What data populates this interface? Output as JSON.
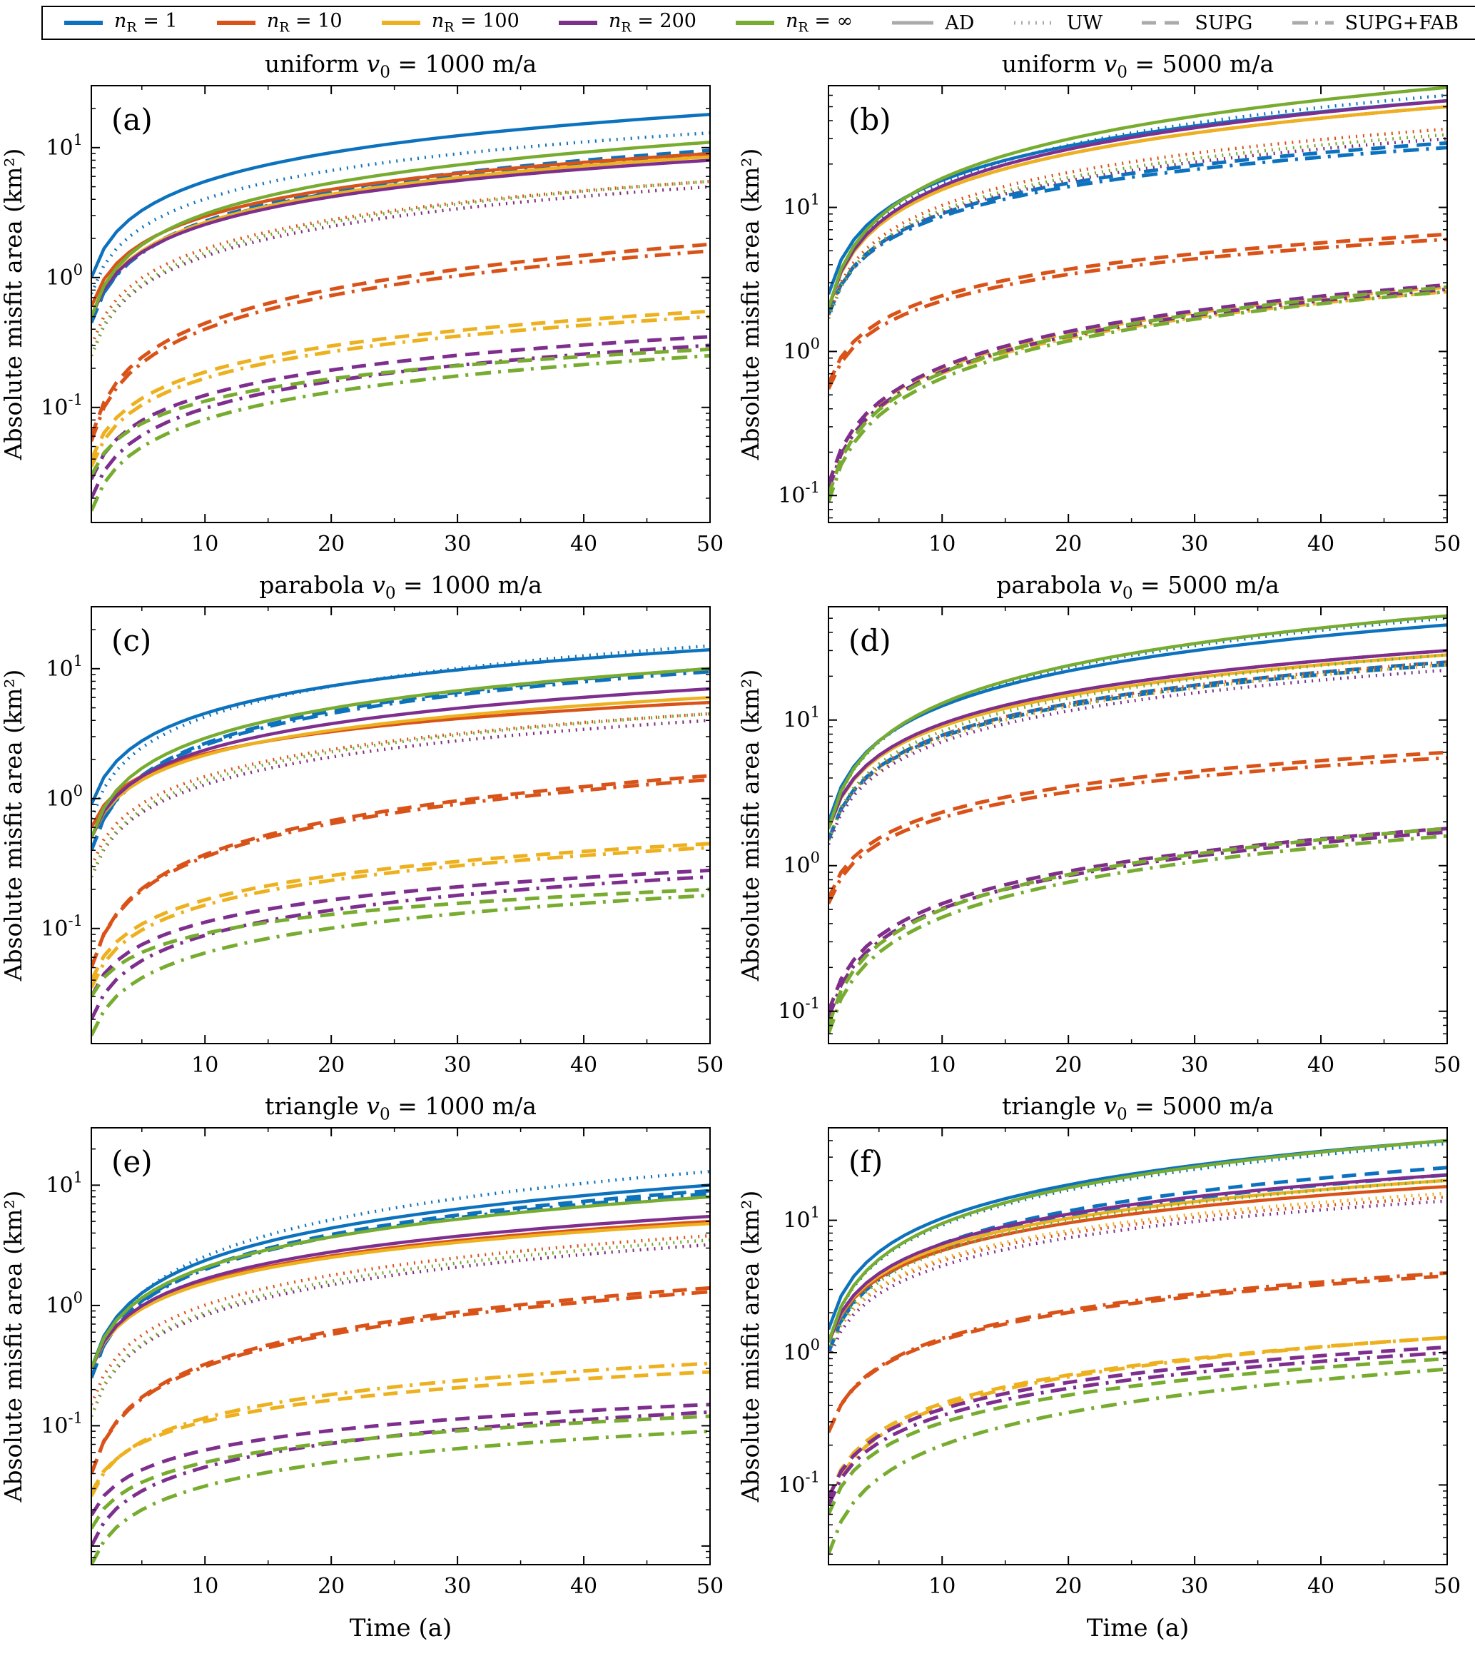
{
  "figure": {
    "ylabel": "Absolute misfit area (km²)",
    "xlabel": "Time (a)"
  },
  "legend": {
    "colors": [
      {
        "label": "n_R = 1",
        "color": "#0d72bd"
      },
      {
        "label": "n_R = 10",
        "color": "#d95319"
      },
      {
        "label": "n_R = 100",
        "color": "#edb120"
      },
      {
        "label": "n_R = 200",
        "color": "#7e2f8e"
      },
      {
        "label": "n_R = ∞",
        "color": "#77ac30"
      }
    ],
    "styles": [
      {
        "label": "AD",
        "dash": "solid",
        "color": "#aaaaaa"
      },
      {
        "label": "UW",
        "dash": "dotted",
        "color": "#aaaaaa"
      },
      {
        "label": "SUPG",
        "dash": "dashed",
        "color": "#aaaaaa"
      },
      {
        "label": "SUPG+FAB",
        "dash": "dashdot",
        "color": "#aaaaaa"
      }
    ]
  },
  "chart_data": [
    {
      "type": "line",
      "panel": "(a)",
      "title": "uniform v_0 = 1000 m/a",
      "xlim": [
        1,
        50
      ],
      "ylim": [
        0.013,
        30
      ],
      "xticks": [
        10,
        20,
        30,
        40,
        50
      ],
      "ytick_exponents": [
        -1,
        0,
        1
      ],
      "xlabel": "",
      "ylabel": "Absolute misfit area (km²)",
      "series": [
        {
          "c": 0,
          "s": 0,
          "y1": 1.0,
          "y50": 18
        },
        {
          "c": 0,
          "s": 1,
          "y1": 0.75,
          "y50": 13
        },
        {
          "c": 0,
          "s": 2,
          "y1": 0.45,
          "y50": 9.5
        },
        {
          "c": 0,
          "s": 3,
          "y1": 0.45,
          "y50": 9.0
        },
        {
          "c": 1,
          "s": 0,
          "y1": 0.6,
          "y50": 9
        },
        {
          "c": 1,
          "s": 1,
          "y1": 0.3,
          "y50": 5.5
        },
        {
          "c": 1,
          "s": 2,
          "y1": 0.06,
          "y50": 1.8
        },
        {
          "c": 1,
          "s": 3,
          "y1": 0.055,
          "y50": 1.6
        },
        {
          "c": 2,
          "s": 0,
          "y1": 0.5,
          "y50": 8.5
        },
        {
          "c": 2,
          "s": 1,
          "y1": 0.25,
          "y50": 5
        },
        {
          "c": 2,
          "s": 2,
          "y1": 0.04,
          "y50": 0.55
        },
        {
          "c": 2,
          "s": 3,
          "y1": 0.035,
          "y50": 0.5
        },
        {
          "c": 3,
          "s": 0,
          "y1": 0.5,
          "y50": 8
        },
        {
          "c": 3,
          "s": 1,
          "y1": 0.25,
          "y50": 5
        },
        {
          "c": 3,
          "s": 2,
          "y1": 0.028,
          "y50": 0.35
        },
        {
          "c": 3,
          "s": 3,
          "y1": 0.02,
          "y50": 0.3
        },
        {
          "c": 4,
          "s": 0,
          "y1": 0.5,
          "y50": 11
        },
        {
          "c": 4,
          "s": 1,
          "y1": 0.25,
          "y50": 5.5
        },
        {
          "c": 4,
          "s": 2,
          "y1": 0.03,
          "y50": 0.28
        },
        {
          "c": 4,
          "s": 3,
          "y1": 0.016,
          "y50": 0.25
        }
      ]
    },
    {
      "type": "line",
      "panel": "(b)",
      "title": "uniform v_0 = 5000 m/a",
      "xlim": [
        1,
        50
      ],
      "ylim": [
        0.065,
        70
      ],
      "xticks": [
        10,
        20,
        30,
        40,
        50
      ],
      "ytick_exponents": [
        -1,
        0,
        1
      ],
      "xlabel": "",
      "ylabel": "Absolute misfit area (km²)",
      "series": [
        {
          "c": 0,
          "s": 0,
          "y1": 2.5,
          "y50": 55
        },
        {
          "c": 0,
          "s": 1,
          "y1": 2.0,
          "y50": 60
        },
        {
          "c": 0,
          "s": 2,
          "y1": 1.8,
          "y50": 28
        },
        {
          "c": 0,
          "s": 3,
          "y1": 1.8,
          "y50": 26
        },
        {
          "c": 1,
          "s": 0,
          "y1": 2.0,
          "y50": 50
        },
        {
          "c": 1,
          "s": 1,
          "y1": 1.8,
          "y50": 35
        },
        {
          "c": 1,
          "s": 2,
          "y1": 0.6,
          "y50": 6.5
        },
        {
          "c": 1,
          "s": 3,
          "y1": 0.55,
          "y50": 6.0
        },
        {
          "c": 2,
          "s": 0,
          "y1": 2.0,
          "y50": 50
        },
        {
          "c": 2,
          "s": 1,
          "y1": 1.7,
          "y50": 30
        },
        {
          "c": 2,
          "s": 2,
          "y1": 0.12,
          "y50": 2.8
        },
        {
          "c": 2,
          "s": 3,
          "y1": 0.11,
          "y50": 2.6
        },
        {
          "c": 3,
          "s": 0,
          "y1": 2.0,
          "y50": 55
        },
        {
          "c": 3,
          "s": 1,
          "y1": 1.7,
          "y50": 30
        },
        {
          "c": 3,
          "s": 2,
          "y1": 0.12,
          "y50": 2.9
        },
        {
          "c": 3,
          "s": 3,
          "y1": 0.11,
          "y50": 2.7
        },
        {
          "c": 4,
          "s": 0,
          "y1": 2.0,
          "y50": 68
        },
        {
          "c": 4,
          "s": 1,
          "y1": 1.7,
          "y50": 32
        },
        {
          "c": 4,
          "s": 2,
          "y1": 0.1,
          "y50": 2.8
        },
        {
          "c": 4,
          "s": 3,
          "y1": 0.09,
          "y50": 2.6
        }
      ]
    },
    {
      "type": "line",
      "panel": "(c)",
      "title": "parabola v_0 = 1000 m/a",
      "xlim": [
        1,
        50
      ],
      "ylim": [
        0.013,
        30
      ],
      "xticks": [
        10,
        20,
        30,
        40,
        50
      ],
      "ytick_exponents": [
        -1,
        0,
        1
      ],
      "xlabel": "",
      "ylabel": "Absolute misfit area (km²)",
      "series": [
        {
          "c": 0,
          "s": 0,
          "y1": 0.9,
          "y50": 14
        },
        {
          "c": 0,
          "s": 1,
          "y1": 0.7,
          "y50": 15
        },
        {
          "c": 0,
          "s": 2,
          "y1": 0.4,
          "y50": 10
        },
        {
          "c": 0,
          "s": 3,
          "y1": 0.4,
          "y50": 9.5
        },
        {
          "c": 1,
          "s": 0,
          "y1": 0.6,
          "y50": 5.5
        },
        {
          "c": 1,
          "s": 1,
          "y1": 0.3,
          "y50": 4.5
        },
        {
          "c": 1,
          "s": 2,
          "y1": 0.05,
          "y50": 1.5
        },
        {
          "c": 1,
          "s": 3,
          "y1": 0.05,
          "y50": 1.4
        },
        {
          "c": 2,
          "s": 0,
          "y1": 0.5,
          "y50": 6
        },
        {
          "c": 2,
          "s": 1,
          "y1": 0.25,
          "y50": 4
        },
        {
          "c": 2,
          "s": 2,
          "y1": 0.04,
          "y50": 0.45
        },
        {
          "c": 2,
          "s": 3,
          "y1": 0.035,
          "y50": 0.42
        },
        {
          "c": 3,
          "s": 0,
          "y1": 0.5,
          "y50": 7
        },
        {
          "c": 3,
          "s": 1,
          "y1": 0.25,
          "y50": 4
        },
        {
          "c": 3,
          "s": 2,
          "y1": 0.03,
          "y50": 0.28
        },
        {
          "c": 3,
          "s": 3,
          "y1": 0.02,
          "y50": 0.25
        },
        {
          "c": 4,
          "s": 0,
          "y1": 0.5,
          "y50": 10
        },
        {
          "c": 4,
          "s": 1,
          "y1": 0.25,
          "y50": 4.5
        },
        {
          "c": 4,
          "s": 2,
          "y1": 0.03,
          "y50": 0.2
        },
        {
          "c": 4,
          "s": 3,
          "y1": 0.015,
          "y50": 0.18
        }
      ]
    },
    {
      "type": "line",
      "panel": "(d)",
      "title": "parabola v_0 = 5000 m/a",
      "xlim": [
        1,
        50
      ],
      "ylim": [
        0.06,
        60
      ],
      "xticks": [
        10,
        20,
        30,
        40,
        50
      ],
      "ytick_exponents": [
        -1,
        0,
        1
      ],
      "xlabel": "",
      "ylabel": "Absolute misfit area (km²)",
      "series": [
        {
          "c": 0,
          "s": 0,
          "y1": 2.0,
          "y50": 45
        },
        {
          "c": 0,
          "s": 1,
          "y1": 1.8,
          "y50": 50
        },
        {
          "c": 0,
          "s": 2,
          "y1": 1.5,
          "y50": 25
        },
        {
          "c": 0,
          "s": 3,
          "y1": 1.5,
          "y50": 24
        },
        {
          "c": 1,
          "s": 0,
          "y1": 1.8,
          "y50": 30
        },
        {
          "c": 1,
          "s": 1,
          "y1": 1.5,
          "y50": 25
        },
        {
          "c": 1,
          "s": 2,
          "y1": 0.6,
          "y50": 6.0
        },
        {
          "c": 1,
          "s": 3,
          "y1": 0.55,
          "y50": 5.5
        },
        {
          "c": 2,
          "s": 0,
          "y1": 1.8,
          "y50": 28
        },
        {
          "c": 2,
          "s": 1,
          "y1": 1.4,
          "y50": 24
        },
        {
          "c": 2,
          "s": 2,
          "y1": 0.1,
          "y50": 1.8
        },
        {
          "c": 2,
          "s": 3,
          "y1": 0.09,
          "y50": 1.7
        },
        {
          "c": 3,
          "s": 0,
          "y1": 1.8,
          "y50": 30
        },
        {
          "c": 3,
          "s": 1,
          "y1": 1.4,
          "y50": 22
        },
        {
          "c": 3,
          "s": 2,
          "y1": 0.1,
          "y50": 1.8
        },
        {
          "c": 3,
          "s": 3,
          "y1": 0.09,
          "y50": 1.7
        },
        {
          "c": 4,
          "s": 0,
          "y1": 1.8,
          "y50": 52
        },
        {
          "c": 4,
          "s": 1,
          "y1": 1.5,
          "y50": 28
        },
        {
          "c": 4,
          "s": 2,
          "y1": 0.08,
          "y50": 1.8
        },
        {
          "c": 4,
          "s": 3,
          "y1": 0.07,
          "y50": 1.6
        }
      ]
    },
    {
      "type": "line",
      "panel": "(e)",
      "title": "triangle v_0 = 1000 m/a",
      "xlim": [
        1,
        50
      ],
      "ylim": [
        0.007,
        30
      ],
      "xticks": [
        10,
        20,
        30,
        40,
        50
      ],
      "ytick_exponents": [
        -1,
        0,
        1
      ],
      "xlabel": "Time (a)",
      "ylabel": "Absolute misfit area (km²)",
      "series": [
        {
          "c": 0,
          "s": 0,
          "y1": 0.3,
          "y50": 10
        },
        {
          "c": 0,
          "s": 1,
          "y1": 0.25,
          "y50": 13
        },
        {
          "c": 0,
          "s": 2,
          "y1": 0.25,
          "y50": 9
        },
        {
          "c": 0,
          "s": 3,
          "y1": 0.25,
          "y50": 8.5
        },
        {
          "c": 1,
          "s": 0,
          "y1": 0.3,
          "y50": 5
        },
        {
          "c": 1,
          "s": 1,
          "y1": 0.15,
          "y50": 3.8
        },
        {
          "c": 1,
          "s": 2,
          "y1": 0.04,
          "y50": 1.4
        },
        {
          "c": 1,
          "s": 3,
          "y1": 0.04,
          "y50": 1.3
        },
        {
          "c": 2,
          "s": 0,
          "y1": 0.3,
          "y50": 4.8
        },
        {
          "c": 2,
          "s": 1,
          "y1": 0.12,
          "y50": 3.2
        },
        {
          "c": 2,
          "s": 2,
          "y1": 0.028,
          "y50": 0.28
        },
        {
          "c": 2,
          "s": 3,
          "y1": 0.026,
          "y50": 0.33
        },
        {
          "c": 3,
          "s": 0,
          "y1": 0.3,
          "y50": 5.5
        },
        {
          "c": 3,
          "s": 1,
          "y1": 0.12,
          "y50": 3.2
        },
        {
          "c": 3,
          "s": 2,
          "y1": 0.018,
          "y50": 0.15
        },
        {
          "c": 3,
          "s": 3,
          "y1": 0.01,
          "y50": 0.13
        },
        {
          "c": 4,
          "s": 0,
          "y1": 0.3,
          "y50": 8
        },
        {
          "c": 4,
          "s": 1,
          "y1": 0.12,
          "y50": 3.5
        },
        {
          "c": 4,
          "s": 2,
          "y1": 0.014,
          "y50": 0.12
        },
        {
          "c": 4,
          "s": 3,
          "y1": 0.007,
          "y50": 0.09
        }
      ]
    },
    {
      "type": "line",
      "panel": "(f)",
      "title": "triangle v_0 = 5000 m/a",
      "xlim": [
        1,
        50
      ],
      "ylim": [
        0.025,
        50
      ],
      "xticks": [
        10,
        20,
        30,
        40,
        50
      ],
      "ytick_exponents": [
        -1,
        0,
        1
      ],
      "xlabel": "Time (a)",
      "ylabel": "Absolute misfit area (km²)",
      "series": [
        {
          "c": 0,
          "s": 0,
          "y1": 1.5,
          "y50": 40
        },
        {
          "c": 0,
          "s": 1,
          "y1": 1.2,
          "y50": 38
        },
        {
          "c": 0,
          "s": 2,
          "y1": 1.0,
          "y50": 25
        },
        {
          "c": 0,
          "s": 3,
          "y1": 1.0,
          "y50": 22
        },
        {
          "c": 1,
          "s": 0,
          "y1": 1.2,
          "y50": 18
        },
        {
          "c": 1,
          "s": 1,
          "y1": 1.0,
          "y50": 15
        },
        {
          "c": 1,
          "s": 2,
          "y1": 0.25,
          "y50": 3.8
        },
        {
          "c": 1,
          "s": 3,
          "y1": 0.25,
          "y50": 4.0
        },
        {
          "c": 2,
          "s": 0,
          "y1": 1.2,
          "y50": 20
        },
        {
          "c": 2,
          "s": 1,
          "y1": 1.0,
          "y50": 16
        },
        {
          "c": 2,
          "s": 2,
          "y1": 0.08,
          "y50": 1.3
        },
        {
          "c": 2,
          "s": 3,
          "y1": 0.07,
          "y50": 1.3
        },
        {
          "c": 3,
          "s": 0,
          "y1": 1.2,
          "y50": 22
        },
        {
          "c": 3,
          "s": 1,
          "y1": 0.9,
          "y50": 14
        },
        {
          "c": 3,
          "s": 2,
          "y1": 0.08,
          "y50": 1.1
        },
        {
          "c": 3,
          "s": 3,
          "y1": 0.07,
          "y50": 1.0
        },
        {
          "c": 4,
          "s": 0,
          "y1": 1.2,
          "y50": 40
        },
        {
          "c": 4,
          "s": 1,
          "y1": 1.0,
          "y50": 20
        },
        {
          "c": 4,
          "s": 2,
          "y1": 0.06,
          "y50": 0.9
        },
        {
          "c": 4,
          "s": 3,
          "y1": 0.03,
          "y50": 0.75
        }
      ]
    }
  ]
}
